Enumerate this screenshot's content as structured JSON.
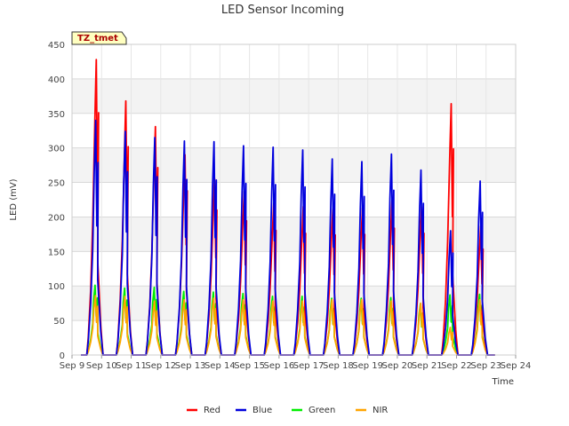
{
  "chart_data": {
    "type": "line",
    "title": "LED Sensor Incoming",
    "xlabel": "Time",
    "ylabel": "LED (mV)",
    "site_tag": "TZ_tmet",
    "ylim": [
      0,
      450
    ],
    "yticks": [
      0,
      50,
      100,
      150,
      200,
      250,
      300,
      350,
      400,
      450
    ],
    "xlim": [
      9,
      24
    ],
    "xticks": [
      9,
      10,
      11,
      12,
      13,
      14,
      15,
      16,
      17,
      18,
      19,
      20,
      21,
      22,
      23,
      24
    ],
    "xtick_labels": [
      "Sep 9",
      "Sep 10",
      "Sep 11",
      "Sep 12",
      "Sep 13",
      "Sep 14",
      "Sep 15",
      "Sep 16",
      "Sep 17",
      "Sep 18",
      "Sep 19",
      "Sep 20",
      "Sep 21",
      "Sep 22",
      "Sep 23",
      "Sep 24"
    ],
    "grid": true,
    "legend_position": "bottom",
    "data_start": 9.3,
    "data_end": 23.3,
    "series": [
      {
        "name": "Red",
        "color": "#ff0000",
        "peak_times": [
          9.82,
          10.82,
          11.82,
          12.82,
          13.82,
          14.82,
          15.82,
          16.82,
          17.82,
          18.82,
          19.82,
          20.82,
          21.82,
          22.82
        ],
        "peaks": [
          428,
          368,
          331,
          290,
          256,
          237,
          220,
          215,
          212,
          213,
          224,
          215,
          364,
          187
        ]
      },
      {
        "name": "Blue",
        "color": "#0000dd",
        "peak_times": [
          9.8,
          10.8,
          11.8,
          12.8,
          13.8,
          14.8,
          15.8,
          16.8,
          17.8,
          18.8,
          19.8,
          20.8,
          21.8,
          22.8
        ],
        "peaks": [
          340,
          324,
          315,
          310,
          309,
          303,
          301,
          297,
          284,
          280,
          291,
          268,
          180,
          252
        ]
      },
      {
        "name": "Green",
        "color": "#00ee00",
        "peak_times": [
          9.78,
          10.78,
          11.78,
          12.78,
          13.78,
          14.78,
          15.78,
          16.78,
          17.78,
          18.78,
          19.78,
          20.78,
          21.78,
          22.78
        ],
        "peaks": [
          101,
          97,
          98,
          92,
          91,
          89,
          85,
          85,
          82,
          82,
          83,
          74,
          87,
          88
        ]
      },
      {
        "name": "NIR",
        "color": "#ffa500",
        "peak_times": [
          9.79,
          10.79,
          11.79,
          12.79,
          13.79,
          14.79,
          15.79,
          16.79,
          17.79,
          18.79,
          19.79,
          20.79,
          21.79,
          22.79
        ],
        "peaks": [
          86,
          85,
          78,
          80,
          82,
          80,
          78,
          78,
          80,
          80,
          78,
          75,
          40,
          80
        ]
      }
    ]
  }
}
